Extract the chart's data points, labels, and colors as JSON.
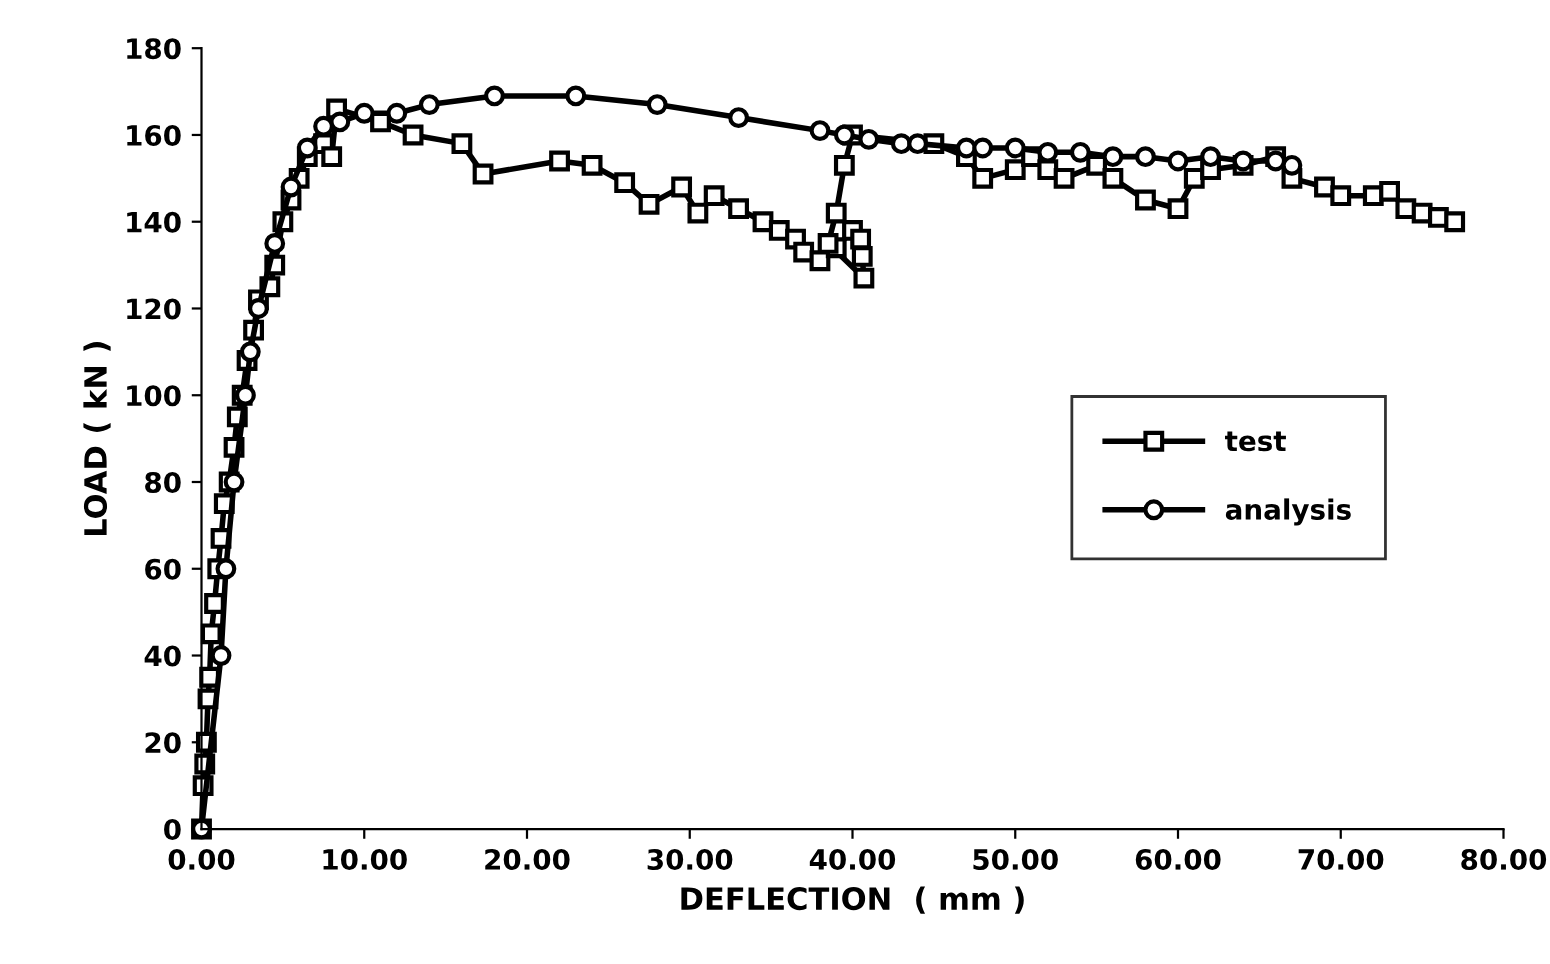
{
  "chart_data": {
    "type": "line",
    "xlabel": "DEFLECTION  ( mm )",
    "ylabel": "LOAD ( kN )",
    "xlim": [
      0,
      80
    ],
    "ylim": [
      0,
      180
    ],
    "xticks": [
      {
        "value": 0,
        "label": "0.00"
      },
      {
        "value": 10,
        "label": "10.00"
      },
      {
        "value": 20,
        "label": "20.00"
      },
      {
        "value": 30,
        "label": "30.00"
      },
      {
        "value": 40,
        "label": "40.00"
      },
      {
        "value": 50,
        "label": "50.00"
      },
      {
        "value": 60,
        "label": "60.00"
      },
      {
        "value": 70,
        "label": "70.00"
      },
      {
        "value": 80,
        "label": "80.00"
      }
    ],
    "yticks": [
      0,
      20,
      40,
      60,
      80,
      100,
      120,
      140,
      160,
      180
    ],
    "grid": false,
    "legend": "right",
    "series": [
      {
        "name": "test",
        "color": "#000000",
        "marker": "square",
        "x": [
          0,
          0.1,
          0.2,
          0.3,
          0.4,
          0.5,
          0.6,
          0.8,
          1.0,
          1.2,
          1.4,
          1.7,
          2.0,
          2.2,
          2.5,
          2.8,
          3.2,
          3.5,
          4.2,
          4.5,
          5,
          5.5,
          6,
          6.5,
          7.5,
          8,
          8.3,
          11,
          13,
          16,
          17.3,
          22,
          24,
          26,
          27.5,
          29.5,
          30.5,
          31.5,
          33,
          34.5,
          35.5,
          36.5,
          37,
          38,
          39,
          40,
          40.5,
          40.6,
          40.7,
          38.5,
          39,
          39.5,
          40,
          45,
          47,
          48,
          50,
          51,
          52,
          53,
          55,
          56,
          58,
          60,
          61,
          62,
          64,
          66,
          67,
          69,
          70,
          72,
          73,
          74,
          75,
          76,
          77
        ],
        "values": [
          0,
          10,
          15,
          20,
          30,
          35,
          45,
          52,
          60,
          67,
          75,
          80,
          88,
          95,
          100,
          108,
          115,
          122,
          125,
          130,
          140,
          145,
          150,
          155,
          158,
          155,
          166,
          163,
          160,
          158,
          151,
          154,
          153,
          149,
          144,
          148,
          142,
          146,
          143,
          140,
          138,
          136,
          133,
          131,
          134,
          138,
          136,
          132,
          127,
          135,
          142,
          153,
          160,
          158,
          155,
          150,
          152,
          155,
          152,
          150,
          153,
          150,
          145,
          143,
          150,
          152,
          153,
          155,
          150,
          148,
          146,
          146,
          147,
          143,
          142,
          141,
          140
        ]
      },
      {
        "name": "analysis",
        "color": "#000000",
        "marker": "circle",
        "x": [
          0,
          1.2,
          1.5,
          2,
          2.7,
          3,
          3.5,
          4.5,
          5.5,
          6.5,
          7.5,
          8.5,
          10,
          12,
          14,
          18,
          23,
          28,
          33,
          38,
          39.5,
          41,
          43,
          44,
          47,
          48,
          50,
          52,
          54,
          56,
          58,
          60,
          62,
          64,
          66,
          67
        ],
        "values": [
          0,
          40,
          60,
          80,
          100,
          110,
          120,
          135,
          148,
          157,
          162,
          163,
          165,
          165,
          167,
          169,
          169,
          167,
          164,
          161,
          160,
          159,
          158,
          158,
          157,
          157,
          157,
          156,
          156,
          155,
          155,
          154,
          155,
          154,
          154,
          153
        ]
      }
    ]
  }
}
